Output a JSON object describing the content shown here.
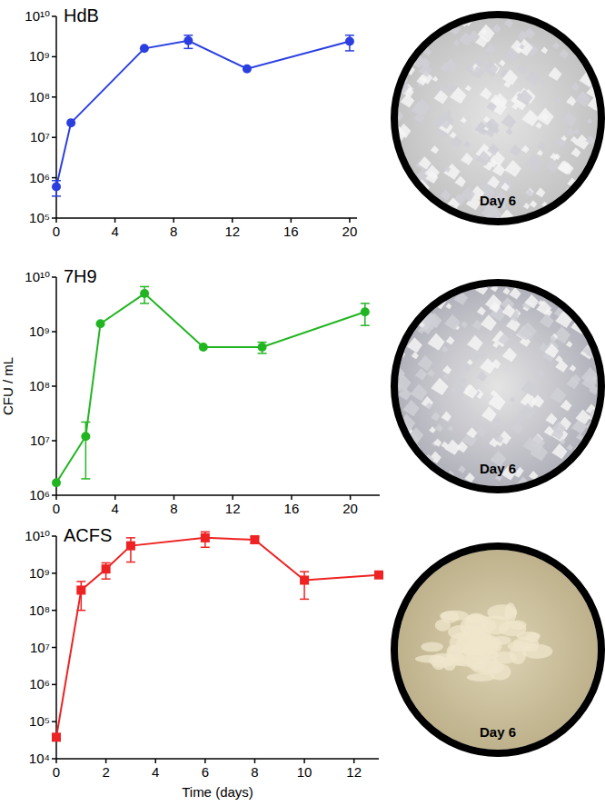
{
  "chart_data": [
    {
      "type": "line",
      "title": "HdB",
      "log": "y",
      "annotation": "Day 6",
      "x": [
        0,
        1,
        6,
        9,
        13,
        20
      ],
      "xlim": [
        0,
        20.5
      ],
      "xticks": [
        0,
        4,
        8,
        12,
        16,
        20
      ],
      "ylim": [
        100000,
        10000000000
      ],
      "yticks": [
        {
          "value": 100000,
          "label": "10⁵"
        },
        {
          "value": 1000000,
          "label": "10⁶"
        },
        {
          "value": 10000000,
          "label": "10⁷"
        },
        {
          "value": 100000000,
          "label": "10⁸"
        },
        {
          "value": 1000000000,
          "label": "10⁹"
        },
        {
          "value": 10000000000,
          "label": "10¹⁰"
        }
      ],
      "series": [
        {
          "color": "#2b3fe0",
          "marker": "circle",
          "values": [
            600000,
            23000000,
            1600000000,
            2500000000,
            500000000,
            2400000000
          ],
          "errors": [
            250000,
            0,
            0,
            900000000,
            0,
            1000000000
          ]
        }
      ]
    },
    {
      "type": "line",
      "title": "7H9",
      "log": "y",
      "annotation": "Day 6",
      "y_label": "CFU / mL",
      "x": [
        0,
        2,
        3,
        6,
        10,
        14,
        21
      ],
      "xlim": [
        0,
        22
      ],
      "xticks": [
        0,
        4,
        8,
        12,
        16,
        20
      ],
      "ylim": [
        1000000,
        10000000000
      ],
      "yticks": [
        {
          "value": 1000000,
          "label": "10⁶"
        },
        {
          "value": 10000000,
          "label": "10⁷"
        },
        {
          "value": 100000000,
          "label": "10⁸"
        },
        {
          "value": 1000000000,
          "label": "10⁹"
        },
        {
          "value": 10000000000,
          "label": "10¹⁰"
        }
      ],
      "series": [
        {
          "color": "#22b522",
          "marker": "circle",
          "values": [
            1700000,
            12000000,
            1400000000,
            5000000000,
            520000000,
            520000000,
            2300000000
          ],
          "errors": [
            0,
            10000000,
            0,
            1700000000,
            0,
            120000000,
            1000000000
          ]
        }
      ]
    },
    {
      "type": "line",
      "title": "ACFS",
      "log": "y",
      "annotation": "Day 6",
      "x_label": "Time (days)",
      "x": [
        0,
        1,
        2,
        3,
        6,
        8,
        10,
        13
      ],
      "xlim": [
        0,
        13
      ],
      "xticks": [
        0,
        2,
        4,
        6,
        8,
        10,
        12
      ],
      "ylim": [
        10000,
        10000000000
      ],
      "yticks": [
        {
          "value": 10000,
          "label": "10⁴"
        },
        {
          "value": 100000,
          "label": "10⁵"
        },
        {
          "value": 1000000,
          "label": "10⁶"
        },
        {
          "value": 10000000,
          "label": "10⁷"
        },
        {
          "value": 100000000,
          "label": "10⁸"
        },
        {
          "value": 1000000000,
          "label": "10⁹"
        },
        {
          "value": 10000000000,
          "label": "10¹⁰"
        }
      ],
      "series": [
        {
          "color": "#ee2222",
          "marker": "square",
          "values": [
            38000,
            350000000,
            1300000000,
            5500000000,
            9000000000,
            8000000000,
            650000000,
            900000000
          ],
          "errors": [
            0,
            250000000,
            600000000,
            3500000000,
            4000000000,
            1500000000,
            450000000,
            100000000
          ]
        }
      ]
    }
  ]
}
